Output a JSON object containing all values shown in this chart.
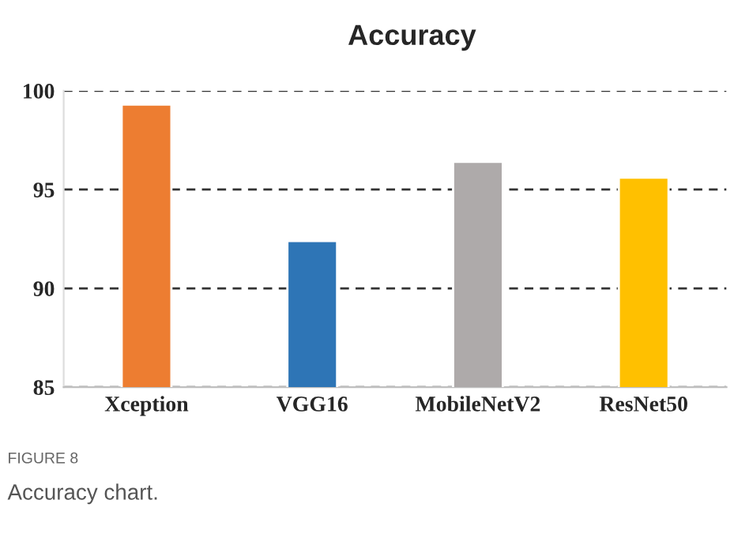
{
  "chart_data": {
    "type": "bar",
    "title": "Accuracy",
    "categories": [
      "Xception",
      "VGG16",
      "MobileNetV2",
      "ResNet50"
    ],
    "values": [
      99.3,
      92.4,
      96.4,
      95.6
    ],
    "colors": [
      "#ed7d31",
      "#2e75b6",
      "#aeaaaa",
      "#ffc000"
    ],
    "ylim": [
      85,
      100
    ],
    "yticks": [
      85,
      90,
      95,
      100
    ],
    "grid": "y",
    "line_style": "dashed",
    "annotations": [
      "FIGURE 8",
      "Accuracy chart."
    ]
  }
}
